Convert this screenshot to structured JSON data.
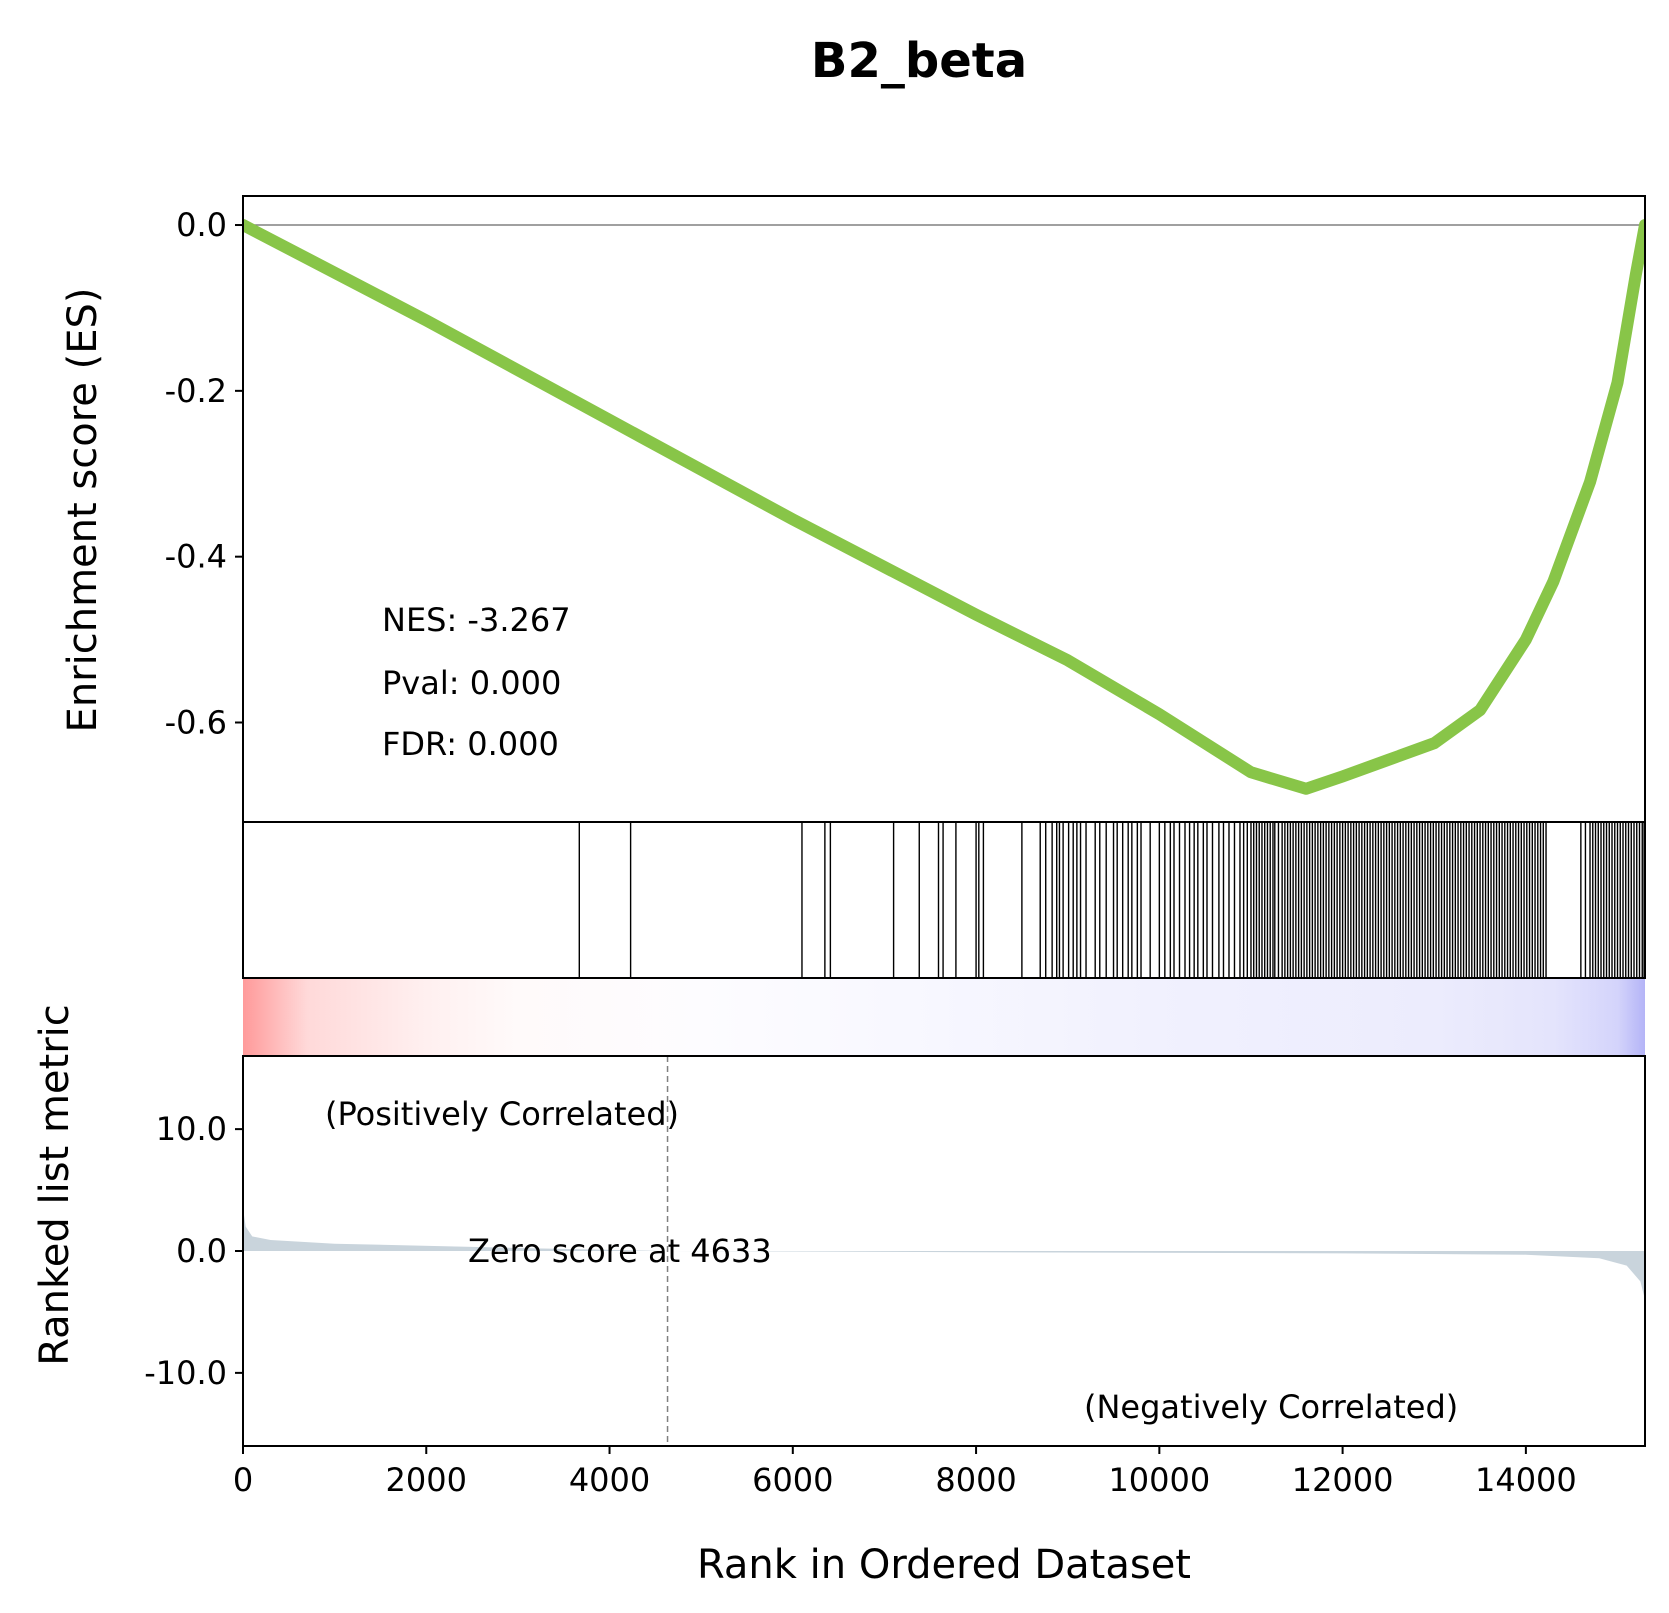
{
  "chart_data": {
    "type": "line",
    "title": "B2_beta",
    "xlabel": "Rank in Ordered Dataset",
    "ylabel_top": "Enrichment score (ES)",
    "ylabel_bottom": "Ranked list metric",
    "xlim": [
      0,
      15300
    ],
    "x_ticks": [
      "0",
      "2000",
      "4000",
      "6000",
      "8000",
      "10000",
      "12000",
      "14000"
    ],
    "es_ylim": [
      -0.72,
      0.035
    ],
    "es_ticks": [
      "0.0",
      "-0.2",
      "-0.4",
      "-0.6"
    ],
    "metric_ylim": [
      -16,
      16
    ],
    "metric_ticks": [
      "10.0",
      "0.0",
      "-10.0"
    ],
    "line_color": "#88c548",
    "stats": {
      "nes": "NES: -3.267",
      "pval": "Pval: 0.000",
      "fdr": "FDR: 0.000"
    },
    "annotations": {
      "positive": "(Positively Correlated)",
      "negative": "(Negatively Correlated)",
      "zero_score": "Zero score at 4633",
      "positive_color": "#ff0000",
      "negative_color": "#0000ff"
    },
    "zero_score_rank": 4633,
    "es_curve": {
      "x": [
        0,
        2000,
        4000,
        6000,
        8000,
        9000,
        10000,
        11000,
        11600,
        12000,
        12500,
        13000,
        13500,
        14000,
        14300,
        14700,
        15000,
        15200,
        15300
      ],
      "y": [
        0.0,
        -0.115,
        -0.235,
        -0.355,
        -0.47,
        -0.525,
        -0.59,
        -0.66,
        -0.68,
        -0.665,
        -0.645,
        -0.625,
        -0.585,
        -0.5,
        -0.43,
        -0.31,
        -0.19,
        -0.06,
        0.0
      ]
    },
    "metric_curve": {
      "x": [
        0,
        30,
        100,
        300,
        1000,
        3000,
        4633,
        8000,
        12000,
        14000,
        14800,
        15100,
        15250,
        15300
      ],
      "y": [
        3.5,
        2.0,
        1.2,
        0.9,
        0.6,
        0.25,
        0.0,
        -0.1,
        -0.2,
        -0.3,
        -0.6,
        -1.2,
        -2.5,
        -4.0
      ]
    },
    "hits": [
      3670,
      4230,
      6100,
      6350,
      6410,
      7100,
      7380,
      7590,
      7640,
      7780,
      8000,
      8030,
      8080,
      8500,
      8700,
      8760,
      8830,
      8880,
      8910,
      8950,
      9010,
      9060,
      9100,
      9140,
      9200,
      9300,
      9350,
      9420,
      9500,
      9540,
      9600,
      9660,
      9700,
      9760,
      9800,
      9900,
      10000,
      10060,
      10120,
      10160,
      10220,
      10280,
      10330,
      10380,
      10420,
      10480,
      10520,
      10580,
      10650,
      10700,
      10760,
      10820,
      10880,
      10920,
      10960,
      11000,
      11030,
      11060,
      11090,
      11120,
      11150,
      11180,
      11210,
      11240,
      11260,
      11300,
      11340,
      11370,
      11400,
      11430,
      11460,
      11490,
      11520,
      11550,
      11580,
      11610,
      11640,
      11670,
      11700,
      11730,
      11760,
      11790,
      11820,
      11850,
      11880,
      11910,
      11940,
      11970,
      12000,
      12030,
      12060,
      12090,
      12120,
      12150,
      12180,
      12210,
      12240,
      12270,
      12300,
      12330,
      12360,
      12390,
      12420,
      12450,
      12480,
      12510,
      12540,
      12570,
      12600,
      12630,
      12660,
      12690,
      12720,
      12750,
      12780,
      12810,
      12840,
      12870,
      12900,
      12930,
      12960,
      12990,
      13020,
      13050,
      13080,
      13110,
      13140,
      13170,
      13200,
      13230,
      13260,
      13290,
      13320,
      13350,
      13380,
      13410,
      13440,
      13470,
      13500,
      13530,
      13560,
      13590,
      13620,
      13650,
      13680,
      13710,
      13740,
      13770,
      13800,
      13830,
      13860,
      13890,
      13920,
      13950,
      13980,
      14010,
      14040,
      14070,
      14100,
      14130,
      14160,
      14190,
      14220,
      14600,
      14650,
      14700,
      14730,
      14760,
      14790,
      14820,
      14850,
      14880,
      14910,
      14940,
      14970,
      15000,
      15030,
      15060,
      15090,
      15120,
      15150,
      15180,
      15210,
      15240,
      15270,
      15290
    ],
    "heatmap": {
      "stops": [
        {
          "x": 0,
          "color": "#ff9a9a"
        },
        {
          "x": 700,
          "color": "#ffd9d9"
        },
        {
          "x": 2000,
          "color": "#fff0f0"
        },
        {
          "x": 3000,
          "color": "#fffafa"
        },
        {
          "x": 5000,
          "color": "#fdfcff"
        },
        {
          "x": 7200,
          "color": "#f8f8ff"
        },
        {
          "x": 9900,
          "color": "#f1f1fe"
        },
        {
          "x": 13000,
          "color": "#ececfd"
        },
        {
          "x": 14300,
          "color": "#e4e4fc"
        },
        {
          "x": 15000,
          "color": "#d4d4fb"
        },
        {
          "x": 15300,
          "color": "#b4b4f7"
        }
      ]
    }
  }
}
